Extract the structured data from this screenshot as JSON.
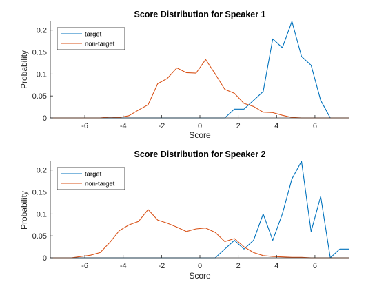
{
  "chart_data": [
    {
      "type": "line",
      "title": "Score Distribution for Speaker 1",
      "xlabel": "Score",
      "ylabel": "Probability",
      "xlim": [
        -7.8,
        7.8
      ],
      "ylim": [
        0,
        0.22
      ],
      "xticks": [
        -6,
        -4,
        -2,
        0,
        2,
        4,
        6
      ],
      "yticks": [
        0,
        0.05,
        0.1,
        0.15,
        0.2
      ],
      "ytick_labels": [
        "0",
        "0.05",
        "0.1",
        "0.15",
        "0.2"
      ],
      "legend_position": "top-left",
      "series": [
        {
          "name": "target",
          "color": "#0072BD",
          "x": [
            -7.8,
            1.3,
            1.8,
            2.3,
            2.8,
            3.3,
            3.8,
            4.3,
            4.8,
            5.3,
            5.8,
            6.3,
            6.8,
            7.8
          ],
          "y": [
            0,
            0,
            0.02,
            0.02,
            0.04,
            0.06,
            0.18,
            0.16,
            0.22,
            0.14,
            0.12,
            0.04,
            0,
            0
          ]
        },
        {
          "name": "non-target",
          "color": "#D95319",
          "x": [
            -7.8,
            -5.2,
            -4.7,
            -4.2,
            -3.7,
            -3.2,
            -2.7,
            -2.2,
            -1.7,
            -1.2,
            -0.7,
            -0.2,
            0.3,
            0.8,
            1.3,
            1.8,
            2.3,
            2.8,
            3.3,
            3.8,
            4.3,
            4.8,
            5.3,
            7.8
          ],
          "y": [
            0,
            0,
            0.002,
            0.001,
            0.005,
            0.018,
            0.03,
            0.078,
            0.09,
            0.114,
            0.103,
            0.102,
            0.133,
            0.1,
            0.065,
            0.056,
            0.033,
            0.026,
            0.013,
            0.012,
            0.006,
            0.001,
            0,
            0
          ]
        }
      ]
    },
    {
      "type": "line",
      "title": "Score Distribution for Speaker 2",
      "xlabel": "Score",
      "ylabel": "Probability",
      "xlim": [
        -7.8,
        7.8
      ],
      "ylim": [
        0,
        0.22
      ],
      "xticks": [
        -6,
        -4,
        -2,
        0,
        2,
        4,
        6
      ],
      "yticks": [
        0,
        0.05,
        0.1,
        0.15,
        0.2
      ],
      "ytick_labels": [
        "0",
        "0.05",
        "0.1",
        "0.15",
        "0.2"
      ],
      "legend_position": "top-left",
      "series": [
        {
          "name": "target",
          "color": "#0072BD",
          "x": [
            -7.8,
            0.8,
            1.3,
            1.8,
            2.3,
            2.8,
            3.3,
            3.8,
            4.3,
            4.8,
            5.3,
            5.8,
            6.3,
            6.8,
            7.3,
            7.8
          ],
          "y": [
            0,
            0,
            0.02,
            0.04,
            0.02,
            0.04,
            0.1,
            0.04,
            0.1,
            0.18,
            0.22,
            0.06,
            0.14,
            0,
            0.02,
            0.02
          ]
        },
        {
          "name": "non-target",
          "color": "#D95319",
          "x": [
            -7.8,
            -6.7,
            -6.2,
            -5.7,
            -5.2,
            -4.7,
            -4.2,
            -3.7,
            -3.2,
            -2.7,
            -2.2,
            -1.7,
            -1.2,
            -0.7,
            -0.2,
            0.3,
            0.8,
            1.3,
            1.8,
            2.3,
            2.8,
            3.3,
            3.8,
            4.3,
            4.8,
            5.3,
            5.8,
            7.8
          ],
          "y": [
            0,
            0,
            0.003,
            0.006,
            0.012,
            0.035,
            0.062,
            0.075,
            0.083,
            0.11,
            0.086,
            0.079,
            0.07,
            0.06,
            0.066,
            0.068,
            0.058,
            0.037,
            0.044,
            0.025,
            0.012,
            0.005,
            0.003,
            0.002,
            0.001,
            0.001,
            0,
            0
          ]
        }
      ]
    }
  ]
}
